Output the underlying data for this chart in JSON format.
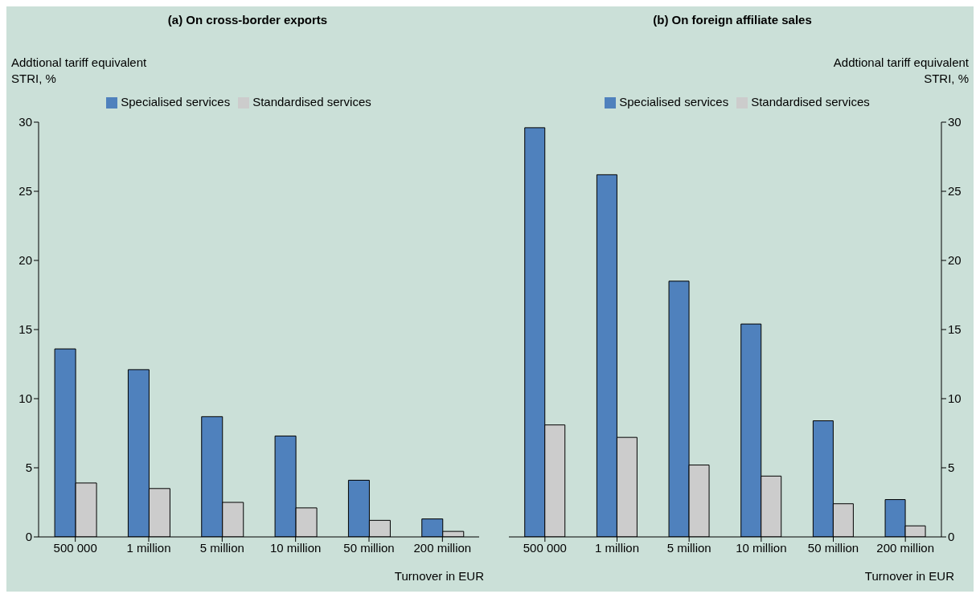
{
  "chart_data": [
    {
      "type": "bar",
      "title": "(a) On cross-border exports",
      "ylabel": "Addtional tariff equivalent\nSTRI, %",
      "xlabel": "Turnover in EUR",
      "categories": [
        "500 000",
        "1 million",
        "5 million",
        "10 million",
        "50 million",
        "200 million"
      ],
      "series": [
        {
          "name": "Specialised services",
          "color": "#4f81bd",
          "values": [
            13.6,
            12.1,
            8.7,
            7.3,
            4.1,
            1.3
          ]
        },
        {
          "name": "Standardised services",
          "color": "#cccccc",
          "values": [
            3.9,
            3.5,
            2.5,
            2.1,
            1.2,
            0.4
          ]
        }
      ],
      "ylim": [
        0,
        30
      ],
      "yticks": [
        0,
        5,
        10,
        15,
        20,
        25,
        30
      ],
      "legend": "top",
      "grid": false
    },
    {
      "type": "bar",
      "title": "(b) On foreign affiliate sales",
      "y2label": "Addtional tariff equivalent\nSTRI, %",
      "xlabel": "Turnover in EUR",
      "categories": [
        "500 000",
        "1 million",
        "5 million",
        "10 million",
        "50 million",
        "200 million"
      ],
      "series": [
        {
          "name": "Specialised services",
          "color": "#4f81bd",
          "values": [
            29.6,
            26.2,
            18.5,
            15.4,
            8.4,
            2.7
          ],
          "axis": "y2"
        },
        {
          "name": "Standardised services",
          "color": "#cccccc",
          "values": [
            8.1,
            7.2,
            5.2,
            4.4,
            2.4,
            0.8
          ],
          "axis": "y2"
        }
      ],
      "y2lim": [
        0,
        30
      ],
      "y2ticks": [
        0,
        5,
        10,
        15,
        20,
        25,
        30
      ],
      "legend": "top",
      "grid": false
    }
  ]
}
